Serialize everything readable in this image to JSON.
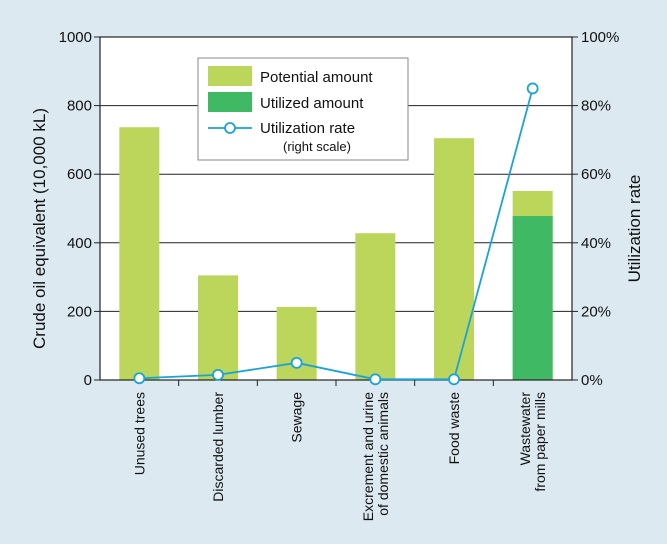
{
  "chart_data": {
    "type": "bar",
    "categories": [
      [
        "Unused trees"
      ],
      [
        "Discarded lumber"
      ],
      [
        "Sewage"
      ],
      [
        "Excrement and urine",
        "of domestic animals"
      ],
      [
        "Food waste"
      ],
      [
        "Wastewater",
        "from paper mills"
      ]
    ],
    "series": [
      {
        "name": "Potential amount",
        "values": [
          737,
          305,
          213,
          428,
          705,
          551
        ],
        "color": "#bcd65b"
      },
      {
        "name": "Utilized amount",
        "values": [
          0,
          0,
          0,
          0,
          0,
          478
        ],
        "color": "#3fb964"
      }
    ],
    "line_series": {
      "name": "Utilization rate",
      "sub": "(right scale)",
      "values": [
        0.5,
        1.5,
        5,
        0.2,
        0.2,
        85
      ],
      "color": "#1aa3d6"
    },
    "ylabel": "Crude oil equivalent (10,000 kL)",
    "y2label": "Utilization rate",
    "ylim": [
      0,
      1000
    ],
    "y2lim": [
      0,
      100
    ],
    "yticks": [
      "0",
      "200",
      "400",
      "600",
      "800",
      "1000"
    ],
    "y2ticks": [
      "0%",
      "20%",
      "40%",
      "60%",
      "80%",
      "100%"
    ],
    "grid": true,
    "legend": "top-center"
  }
}
